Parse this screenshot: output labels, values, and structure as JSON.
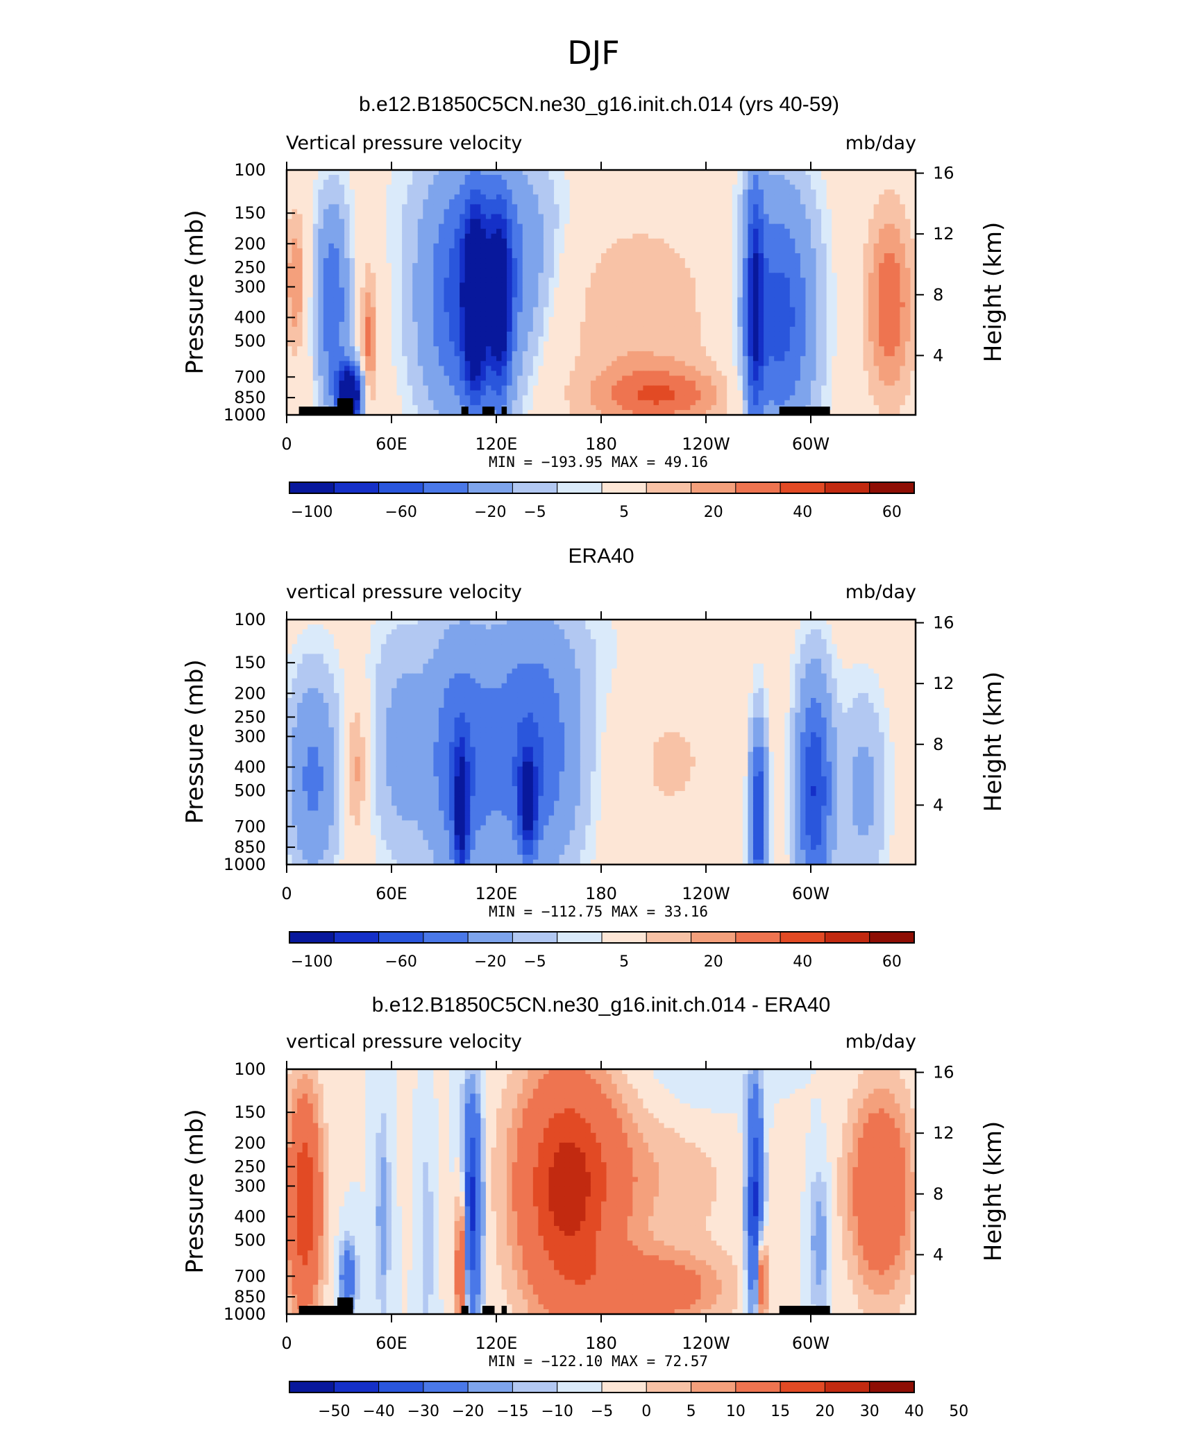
{
  "figure_title": "DJF",
  "panels": [
    {
      "title": "b.e12.B1850C5CN.ne30_g16.init.ch.014 (yrs 40-59)",
      "left_label": "Vertical pressure velocity",
      "right_label": "mb/day",
      "stats": "MIN = −193.95   MAX =   49.16"
    },
    {
      "title": "ERA40",
      "left_label": "vertical pressure velocity",
      "right_label": "mb/day",
      "stats": "MIN = −112.75   MAX =   33.16"
    },
    {
      "title": "b.e12.B1850C5CN.ne30_g16.init.ch.014 - ERA40",
      "left_label": "vertical pressure velocity",
      "right_label": "mb/day",
      "stats": "MIN = −122.10   MAX =   72.57"
    }
  ],
  "chart_data": [
    {
      "type": "heatmap",
      "title": "b.e12.B1850C5CN.ne30_g16.init.ch.014 (yrs 40-59)",
      "ylabel": "Pressure (mb)",
      "y2label": "Height (km)",
      "x_ticks": [
        "0",
        "60E",
        "120E",
        "180",
        "120W",
        "60W"
      ],
      "y_ticks": [
        "100",
        "150",
        "200",
        "250",
        "300",
        "400",
        "500",
        "700",
        "850",
        "1000"
      ],
      "y2_ticks": [
        "16",
        "12",
        "8",
        "4"
      ],
      "colorbar_labels": [
        "−100",
        "−60",
        "−20",
        "−5",
        "5",
        "20",
        "40",
        "60"
      ],
      "min": -193.95,
      "max": 49.16,
      "units": "mb/day"
    },
    {
      "type": "heatmap",
      "title": "ERA40",
      "ylabel": "Pressure (mb)",
      "y2label": "Height (km)",
      "x_ticks": [
        "0",
        "60E",
        "120E",
        "180",
        "120W",
        "60W"
      ],
      "y_ticks": [
        "100",
        "150",
        "200",
        "250",
        "300",
        "400",
        "500",
        "700",
        "850",
        "1000"
      ],
      "y2_ticks": [
        "16",
        "12",
        "8",
        "4"
      ],
      "colorbar_labels": [
        "−100",
        "−60",
        "−20",
        "−5",
        "5",
        "20",
        "40",
        "60"
      ],
      "min": -112.75,
      "max": 33.16,
      "units": "mb/day"
    },
    {
      "type": "heatmap",
      "title": "b.e12.B1850C5CN.ne30_g16.init.ch.014 - ERA40",
      "ylabel": "Pressure (mb)",
      "y2label": "Height (km)",
      "x_ticks": [
        "0",
        "60E",
        "120E",
        "180",
        "120W",
        "60W"
      ],
      "y_ticks": [
        "100",
        "150",
        "200",
        "250",
        "300",
        "400",
        "500",
        "700",
        "850",
        "1000"
      ],
      "y2_ticks": [
        "16",
        "12",
        "8",
        "4"
      ],
      "colorbar_labels": [
        "−50",
        "−40",
        "−30",
        "−20",
        "−15",
        "−10",
        "−5",
        "0",
        "5",
        "10",
        "15",
        "20",
        "30",
        "40",
        "50"
      ],
      "min": -122.1,
      "max": 72.57,
      "units": "mb/day"
    }
  ],
  "colormap": [
    "#08189c",
    "#1530c8",
    "#2a56dc",
    "#4a78e8",
    "#7ea4ec",
    "#b2c8f2",
    "#daeafa",
    "#fde6d6",
    "#f8c2a6",
    "#f4a07c",
    "#ee7450",
    "#e24a24",
    "#c22a10",
    "#8e0e04"
  ]
}
